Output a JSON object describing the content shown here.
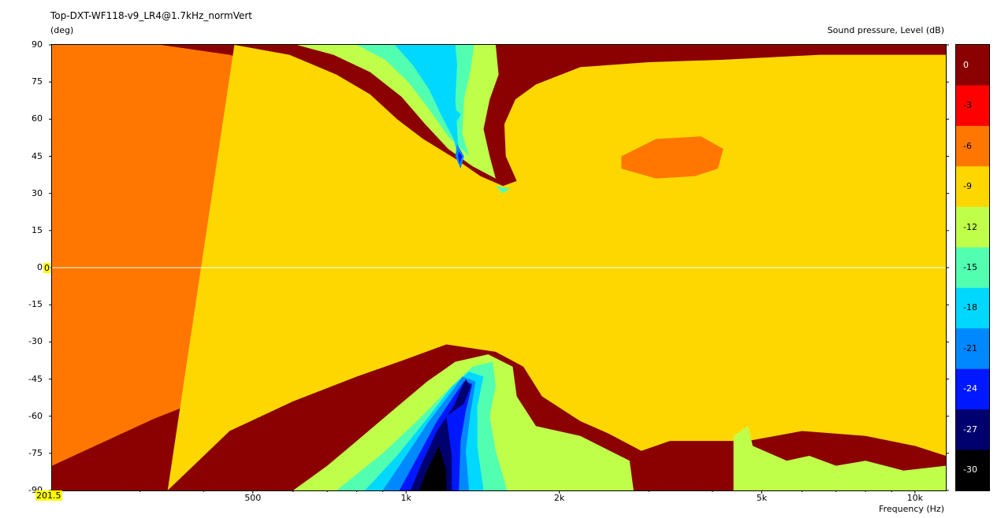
{
  "chart_data": {
    "type": "heatmap",
    "title": "Top-DXT-WF118-v9_LR4@1.7kHz_normVert",
    "ylabel": "(deg)",
    "xlabel": "Frequency  (Hz)",
    "zlabel": "Sound pressure, Level  (dB)",
    "x_scale": "log",
    "xlim": [
      201.5,
      11500
    ],
    "ylim": [
      -90,
      90
    ],
    "x_ticks": [
      "500",
      "1k",
      "2k",
      "5k",
      "10k"
    ],
    "y_ticks": [
      "90",
      "75",
      "60",
      "45",
      "30",
      "15",
      "0",
      "-15",
      "-30",
      "-45",
      "-60",
      "-75",
      "-90"
    ],
    "x_start_label": "201.5",
    "y_zero_label": "0",
    "levels": [
      {
        "label": "0",
        "color": "#8b0000"
      },
      {
        "label": "-3",
        "color": "#ff0000"
      },
      {
        "label": "-6",
        "color": "#ff7700"
      },
      {
        "label": "-9",
        "color": "#ffd700"
      },
      {
        "label": "-12",
        "color": "#bfff4a"
      },
      {
        "label": "-15",
        "color": "#52ffb0"
      },
      {
        "label": "-18",
        "color": "#00d8ff"
      },
      {
        "label": "-21",
        "color": "#0088ff"
      },
      {
        "label": "-24",
        "color": "#0018ff"
      },
      {
        "label": "-27",
        "color": "#00006e"
      },
      {
        "label": "-30",
        "color": "#000000"
      }
    ],
    "contours": [
      {
        "level": "-3",
        "points": [
          [
            225,
            90
          ],
          [
            300,
            84
          ],
          [
            390,
            74
          ],
          [
            540,
            62
          ],
          [
            720,
            52
          ],
          [
            900,
            43
          ],
          [
            1050,
            36
          ],
          [
            1250,
            30
          ],
          [
            1450,
            24
          ],
          [
            1650,
            20
          ],
          [
            1850,
            15
          ],
          [
            2300,
            12
          ],
          [
            2900,
            11
          ],
          [
            3600,
            16
          ],
          [
            4300,
            23
          ],
          [
            4600,
            32
          ],
          [
            5400,
            35
          ],
          [
            6400,
            33
          ],
          [
            7400,
            29
          ],
          [
            8800,
            29
          ],
          [
            9100,
            48
          ],
          [
            11500,
            45
          ],
          [
            11500,
            -52
          ],
          [
            10500,
            -52
          ],
          [
            9000,
            -47
          ],
          [
            7400,
            -42
          ],
          [
            5800,
            -38
          ],
          [
            4600,
            -38
          ],
          [
            3800,
            -38
          ],
          [
            3200,
            -22
          ],
          [
            2800,
            -17
          ],
          [
            2000,
            -14
          ],
          [
            1500,
            -9
          ],
          [
            1300,
            -10
          ],
          [
            1000,
            -16
          ],
          [
            800,
            -24
          ],
          [
            600,
            -32
          ],
          [
            450,
            -38
          ],
          [
            320,
            -46
          ],
          [
            201.5,
            -61
          ],
          [
            201.5,
            90
          ]
        ]
      },
      {
        "level": "-6",
        "points": [
          [
            330,
            90
          ],
          [
            450,
            86
          ],
          [
            590,
            78
          ],
          [
            730,
            68
          ],
          [
            880,
            56
          ],
          [
            1050,
            45
          ],
          [
            1250,
            37
          ],
          [
            1450,
            31
          ],
          [
            1700,
            30
          ],
          [
            1900,
            33
          ],
          [
            1800,
            40
          ],
          [
            1700,
            50
          ],
          [
            1720,
            62
          ],
          [
            2000,
            64
          ],
          [
            2300,
            68
          ],
          [
            2650,
            64
          ],
          [
            3000,
            74
          ],
          [
            3400,
            76
          ],
          [
            4000,
            77
          ],
          [
            5200,
            75
          ],
          [
            7000,
            73
          ],
          [
            9000,
            74
          ],
          [
            10500,
            75
          ],
          [
            11500,
            75
          ],
          [
            11500,
            -64
          ],
          [
            10500,
            -62
          ],
          [
            9000,
            -58
          ],
          [
            7000,
            -55
          ],
          [
            5800,
            -54
          ],
          [
            4600,
            -54
          ],
          [
            3300,
            -54
          ],
          [
            2900,
            -54
          ],
          [
            2200,
            -46
          ],
          [
            1800,
            -38
          ],
          [
            1600,
            -25
          ],
          [
            1400,
            -20
          ],
          [
            1000,
            -26
          ],
          [
            800,
            -33
          ],
          [
            600,
            -41
          ],
          [
            450,
            -49
          ],
          [
            320,
            -61
          ],
          [
            201.5,
            -80
          ],
          [
            201.5,
            90
          ]
        ]
      },
      {
        "level": "-9",
        "points": [
          [
            460,
            90
          ],
          [
            590,
            86
          ],
          [
            730,
            78
          ],
          [
            850,
            70
          ],
          [
            960,
            60
          ],
          [
            1080,
            52
          ],
          [
            1250,
            44
          ],
          [
            1400,
            37
          ],
          [
            1550,
            33
          ],
          [
            1650,
            35
          ],
          [
            1570,
            45
          ],
          [
            1560,
            58
          ],
          [
            1640,
            68
          ],
          [
            1800,
            74
          ],
          [
            2200,
            81
          ],
          [
            3000,
            83
          ],
          [
            4200,
            84
          ],
          [
            6500,
            86
          ],
          [
            9000,
            86
          ],
          [
            11500,
            86
          ],
          [
            11500,
            -76
          ],
          [
            10000,
            -72
          ],
          [
            8000,
            -68
          ],
          [
            6000,
            -66
          ],
          [
            4700,
            -70
          ],
          [
            3300,
            -70
          ],
          [
            2900,
            -74
          ],
          [
            2500,
            -67
          ],
          [
            2200,
            -62
          ],
          [
            1850,
            -52
          ],
          [
            1700,
            -40
          ],
          [
            1500,
            -34
          ],
          [
            1200,
            -31
          ],
          [
            1000,
            -37
          ],
          [
            800,
            -44
          ],
          [
            600,
            -54
          ],
          [
            450,
            -66
          ],
          [
            340,
            -90
          ],
          [
            460,
            90
          ]
        ]
      },
      {
        "level": "-12",
        "points": [
          [
            610,
            90
          ],
          [
            720,
            86
          ],
          [
            850,
            79
          ],
          [
            980,
            69
          ],
          [
            1090,
            58
          ],
          [
            1210,
            48
          ],
          [
            1350,
            41
          ],
          [
            1500,
            36
          ],
          [
            1460,
            45
          ],
          [
            1420,
            56
          ],
          [
            1460,
            68
          ],
          [
            1520,
            78
          ],
          [
            1500,
            90
          ],
          [
            610,
            90
          ]
        ]
      },
      {
        "level": "-12",
        "points": [
          [
            1250,
            -38
          ],
          [
            1450,
            -35
          ],
          [
            1620,
            -40
          ],
          [
            1650,
            -52
          ],
          [
            1800,
            -64
          ],
          [
            2200,
            -68
          ],
          [
            2750,
            -78
          ],
          [
            2800,
            -90
          ],
          [
            600,
            -90
          ],
          [
            700,
            -80
          ],
          [
            800,
            -70
          ],
          [
            950,
            -57
          ],
          [
            1100,
            -46
          ],
          [
            1250,
            -38
          ]
        ]
      },
      {
        "level": "-15",
        "points": [
          [
            800,
            90
          ],
          [
            910,
            84
          ],
          [
            1010,
            75
          ],
          [
            1110,
            64
          ],
          [
            1210,
            53
          ],
          [
            1330,
            45
          ],
          [
            1290,
            54
          ],
          [
            1300,
            68
          ],
          [
            1340,
            80
          ],
          [
            1360,
            90
          ],
          [
            800,
            90
          ]
        ]
      },
      {
        "level": "-15",
        "points": [
          [
            1350,
            -40
          ],
          [
            1480,
            -38
          ],
          [
            1500,
            -48
          ],
          [
            1460,
            -60
          ],
          [
            1500,
            -74
          ],
          [
            1580,
            -90
          ],
          [
            730,
            -90
          ],
          [
            900,
            -75
          ],
          [
            1050,
            -62
          ],
          [
            1200,
            -50
          ],
          [
            1350,
            -40
          ]
        ]
      },
      {
        "level": "-18",
        "points": [
          [
            950,
            90
          ],
          [
            1030,
            82
          ],
          [
            1110,
            72
          ],
          [
            1170,
            62
          ],
          [
            1240,
            52
          ],
          [
            1270,
            44
          ],
          [
            1260,
            56
          ],
          [
            1250,
            68
          ],
          [
            1260,
            82
          ],
          [
            1250,
            90
          ],
          [
            950,
            90
          ]
        ]
      },
      {
        "level": "-18",
        "points": [
          [
            1330,
            -42
          ],
          [
            1420,
            -44
          ],
          [
            1380,
            -56
          ],
          [
            1380,
            -72
          ],
          [
            1420,
            -90
          ],
          [
            830,
            -90
          ],
          [
            960,
            -76
          ],
          [
            1100,
            -61
          ],
          [
            1230,
            -48
          ],
          [
            1330,
            -42
          ]
        ]
      },
      {
        "level": "-21",
        "points": [
          [
            1290,
            -44
          ],
          [
            1370,
            -46
          ],
          [
            1340,
            -58
          ],
          [
            1310,
            -74
          ],
          [
            1330,
            -90
          ],
          [
            900,
            -90
          ],
          [
            1000,
            -76
          ],
          [
            1110,
            -62
          ],
          [
            1230,
            -50
          ],
          [
            1290,
            -44
          ]
        ]
      },
      {
        "level": "-21",
        "points": [
          [
            1260,
            50
          ],
          [
            1300,
            45
          ],
          [
            1280,
            40
          ],
          [
            1250,
            45
          ],
          [
            1260,
            50
          ]
        ]
      },
      {
        "level": "-24",
        "points": [
          [
            1300,
            -46
          ],
          [
            1350,
            -47
          ],
          [
            1310,
            -58
          ],
          [
            1280,
            -70
          ],
          [
            1270,
            -90
          ],
          [
            970,
            -90
          ],
          [
            1050,
            -77
          ],
          [
            1150,
            -62
          ],
          [
            1240,
            -52
          ],
          [
            1300,
            -46
          ]
        ]
      },
      {
        "level": "-24",
        "points": [
          [
            1270,
            47
          ],
          [
            1290,
            45
          ],
          [
            1275,
            42
          ],
          [
            1265,
            45
          ],
          [
            1270,
            47
          ]
        ]
      },
      {
        "level": "-27",
        "points": [
          [
            1310,
            -45
          ],
          [
            1340,
            -48
          ],
          [
            1300,
            -55
          ],
          [
            1200,
            -60
          ],
          [
            1230,
            -76
          ],
          [
            1230,
            -90
          ],
          [
            1020,
            -90
          ],
          [
            1080,
            -78
          ],
          [
            1150,
            -66
          ],
          [
            1240,
            -56
          ],
          [
            1310,
            -45
          ]
        ]
      },
      {
        "level": "-30",
        "points": [
          [
            1060,
            -90
          ],
          [
            1110,
            -80
          ],
          [
            1160,
            -72
          ],
          [
            1200,
            -82
          ],
          [
            1200,
            -90
          ],
          [
            1060,
            -90
          ]
        ]
      },
      {
        "level": "-6",
        "points": [
          [
            2650,
            45
          ],
          [
            3100,
            52
          ],
          [
            3800,
            53
          ],
          [
            4200,
            48
          ],
          [
            4100,
            40
          ],
          [
            3700,
            37
          ],
          [
            3100,
            36
          ],
          [
            2650,
            40
          ],
          [
            2650,
            45
          ]
        ]
      },
      {
        "level": "-9",
        "points": [
          [
            5300,
            76
          ],
          [
            5900,
            74
          ],
          [
            6300,
            73
          ],
          [
            6200,
            63
          ],
          [
            5800,
            55
          ],
          [
            5500,
            56
          ],
          [
            5000,
            60
          ],
          [
            5300,
            76
          ]
        ]
      },
      {
        "level": "-15",
        "points": [
          [
            1500,
            33
          ],
          [
            1600,
            32
          ],
          [
            1550,
            30
          ],
          [
            1500,
            33
          ]
        ]
      },
      {
        "level": "-18",
        "points": [
          [
            1250,
            64
          ],
          [
            1280,
            62
          ],
          [
            1260,
            59
          ],
          [
            1250,
            64
          ]
        ]
      },
      {
        "level": "-12",
        "points": [
          [
            4400,
            -68
          ],
          [
            4700,
            -64
          ],
          [
            4800,
            -72
          ],
          [
            5600,
            -78
          ],
          [
            6200,
            -76
          ],
          [
            7000,
            -80
          ],
          [
            8000,
            -78
          ],
          [
            9500,
            -82
          ],
          [
            11500,
            -80
          ],
          [
            11500,
            -90
          ],
          [
            4400,
            -90
          ],
          [
            4400,
            -68
          ]
        ]
      }
    ]
  }
}
